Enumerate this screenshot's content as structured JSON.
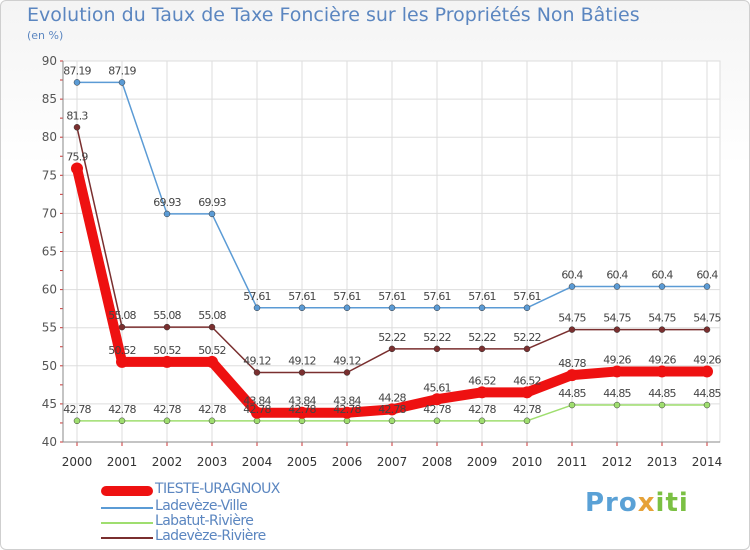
{
  "title": "Evolution du Taux de Taxe Foncière sur les Propriétés Non Bâties",
  "subtitle": "(en %)",
  "logo": {
    "part1": "Pro",
    "part2": "x",
    "part3": "iti"
  },
  "chart_data": {
    "type": "line",
    "title": "Evolution du Taux de Taxe Foncière sur les Propriétés Non Bâties",
    "ylabel": "(en %)",
    "xlabel": "",
    "ylim": [
      40,
      90
    ],
    "yticks": [
      40,
      45,
      50,
      55,
      60,
      65,
      70,
      75,
      80,
      85,
      90
    ],
    "categories": [
      "2000",
      "2001",
      "2002",
      "2003",
      "2004",
      "2005",
      "2006",
      "2007",
      "2008",
      "2009",
      "2010",
      "2011",
      "2012",
      "2013",
      "2014"
    ],
    "series": [
      {
        "name": "TIESTE-URAGNOUX",
        "color": "#ee1111",
        "values": [
          75.9,
          50.52,
          50.52,
          50.52,
          43.84,
          43.84,
          43.84,
          44.28,
          45.61,
          46.52,
          46.52,
          48.78,
          49.26,
          49.26,
          49.26
        ],
        "labels": [
          "75.9",
          "50.52",
          "50.52",
          "50.52",
          "43.84",
          "43.84",
          "43.84",
          "44.28",
          "45.61",
          "46.52",
          "46.52",
          "48.78",
          "49.26",
          "49.26",
          "49.26"
        ]
      },
      {
        "name": "Ladevèze-Ville",
        "color": "#5b9bd5",
        "values": [
          87.19,
          87.19,
          69.93,
          69.93,
          57.61,
          57.61,
          57.61,
          57.61,
          57.61,
          57.61,
          57.61,
          60.4,
          60.4,
          60.4,
          60.4
        ],
        "labels": [
          "87.19",
          "87.19",
          "69.93",
          "69.93",
          "57.61",
          "57.61",
          "57.61",
          "57.61",
          "57.61",
          "57.61",
          "57.61",
          "60.4",
          "60.4",
          "60.4",
          "60.4"
        ]
      },
      {
        "name": "Labatut-Rivière",
        "color": "#9fde6f",
        "values": [
          42.78,
          42.78,
          42.78,
          42.78,
          42.78,
          42.78,
          42.78,
          42.78,
          42.78,
          42.78,
          42.78,
          44.85,
          44.85,
          44.85,
          44.85
        ],
        "labels": [
          "42.78",
          "42.78",
          "42.78",
          "42.78",
          "42.78",
          "42.78",
          "42.78",
          "42.78",
          "42.78",
          "42.78",
          "42.78",
          "44.85",
          "44.85",
          "44.85",
          "44.85"
        ]
      },
      {
        "name": "Ladevèze-Rivière",
        "color": "#7a2f2f",
        "values": [
          81.3,
          55.08,
          55.08,
          55.08,
          49.12,
          49.12,
          49.12,
          52.22,
          52.22,
          52.22,
          52.22,
          54.75,
          54.75,
          54.75,
          54.75
        ],
        "labels": [
          "81.3",
          "55.08",
          "55.08",
          "55.08",
          "49.12",
          "49.12",
          "49.12",
          "52.22",
          "52.22",
          "52.22",
          "52.22",
          "54.75",
          "54.75",
          "54.75",
          "54.75"
        ]
      }
    ],
    "legend": "bottom-left",
    "grid": true
  }
}
